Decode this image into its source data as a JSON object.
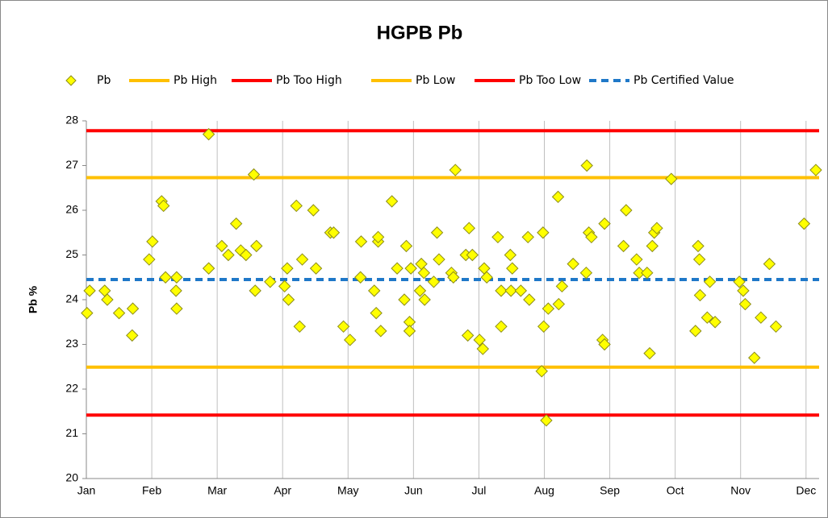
{
  "chart_data": {
    "type": "scatter",
    "title": "HGPB Pb",
    "y_label": "Pb %",
    "xlim": [
      0,
      11.2
    ],
    "xticks": [
      {
        "value": 0,
        "label": "Jan"
      },
      {
        "value": 1,
        "label": "Feb"
      },
      {
        "value": 2,
        "label": "Mar"
      },
      {
        "value": 3,
        "label": "Apr"
      },
      {
        "value": 4,
        "label": "May"
      },
      {
        "value": 5,
        "label": "Jun"
      },
      {
        "value": 6,
        "label": "Jul"
      },
      {
        "value": 7,
        "label": "Aug"
      },
      {
        "value": 8,
        "label": "Sep"
      },
      {
        "value": 9,
        "label": "Oct"
      },
      {
        "value": 10,
        "label": "Nov"
      },
      {
        "value": 11,
        "label": "Dec"
      }
    ],
    "ylim": [
      20,
      28
    ],
    "yticks": [
      20,
      21,
      22,
      23,
      24,
      25,
      26,
      27,
      28
    ],
    "x_grid": true,
    "series": [
      {
        "name": "Pb",
        "color": "#ffff00",
        "edge_color": "#8c8c1a",
        "x": [
          0.01,
          0.05,
          0.28,
          0.32,
          0.5,
          0.7,
          0.71,
          0.96,
          1.01,
          1.15,
          1.18,
          1.21,
          1.37,
          1.38,
          1.38,
          1.87,
          1.87,
          2.07,
          2.17,
          2.29,
          2.36,
          2.44,
          2.56,
          2.58,
          2.6,
          2.81,
          3.03,
          3.07,
          3.09,
          3.21,
          3.26,
          3.3,
          3.47,
          3.51,
          3.73,
          3.78,
          3.93,
          4.03,
          4.19,
          4.2,
          4.4,
          4.43,
          4.46,
          4.46,
          4.5,
          4.67,
          4.75,
          4.86,
          4.89,
          4.94,
          4.94,
          4.96,
          5.1,
          5.12,
          5.16,
          5.17,
          5.31,
          5.36,
          5.39,
          5.58,
          5.61,
          5.64,
          5.8,
          5.83,
          5.85,
          5.9,
          6.01,
          6.06,
          6.08,
          6.12,
          6.29,
          6.34,
          6.34,
          6.48,
          6.49,
          6.51,
          6.64,
          6.75,
          6.77,
          6.96,
          6.98,
          6.99,
          7.03,
          7.06,
          7.21,
          7.22,
          7.27,
          7.44,
          7.64,
          7.65,
          7.68,
          7.72,
          7.89,
          7.92,
          7.92,
          8.21,
          8.25,
          8.41,
          8.45,
          8.57,
          8.61,
          8.65,
          8.68,
          8.72,
          8.94,
          9.31,
          9.35,
          9.37,
          9.38,
          9.49,
          9.53,
          9.61,
          9.98,
          10.04,
          10.07,
          10.21,
          10.31,
          10.44,
          10.54,
          10.97,
          11.15
        ],
        "values": [
          23.7,
          24.2,
          24.2,
          24.0,
          23.7,
          23.2,
          23.8,
          24.9,
          25.3,
          26.2,
          26.1,
          24.5,
          24.2,
          24.5,
          23.8,
          27.7,
          24.7,
          25.2,
          25.0,
          25.7,
          25.1,
          25.0,
          26.8,
          24.2,
          25.2,
          24.4,
          24.3,
          24.7,
          24.0,
          26.1,
          23.4,
          24.9,
          26.0,
          24.7,
          25.5,
          25.5,
          23.4,
          23.1,
          24.5,
          25.3,
          24.2,
          23.7,
          25.3,
          25.4,
          23.3,
          26.2,
          24.7,
          24.0,
          25.2,
          23.5,
          23.3,
          24.7,
          24.2,
          24.8,
          24.6,
          24.0,
          24.4,
          25.5,
          24.9,
          24.6,
          24.5,
          26.9,
          25.0,
          23.2,
          25.6,
          25.0,
          23.1,
          22.9,
          24.7,
          24.5,
          25.4,
          23.4,
          24.2,
          25.0,
          24.2,
          24.7,
          24.2,
          25.4,
          24.0,
          22.4,
          25.5,
          23.4,
          21.3,
          23.8,
          26.3,
          23.9,
          24.3,
          24.8,
          24.6,
          27.0,
          25.5,
          25.4,
          23.1,
          23.0,
          25.7,
          25.2,
          26.0,
          24.9,
          24.6,
          24.6,
          22.8,
          25.2,
          25.5,
          25.6,
          26.7,
          23.3,
          25.2,
          24.9,
          24.1,
          23.6,
          24.4,
          23.5,
          24.4,
          24.2,
          23.9,
          22.7,
          23.6,
          24.8,
          23.4,
          25.7,
          26.9
        ]
      }
    ],
    "lines": [
      {
        "name": "Pb High",
        "color": "#ffc000",
        "value": 26.73,
        "dashed": false
      },
      {
        "name": "Pb Too High",
        "color": "#ff0000",
        "value": 27.78,
        "dashed": false
      },
      {
        "name": "Pb Low",
        "color": "#ffc000",
        "value": 22.49,
        "dashed": false
      },
      {
        "name": "Pb Too Low",
        "color": "#ff0000",
        "value": 21.42,
        "dashed": false
      },
      {
        "name": "Pb Certified Value",
        "color": "#1f78c8",
        "value": 24.45,
        "dashed": true
      }
    ]
  }
}
